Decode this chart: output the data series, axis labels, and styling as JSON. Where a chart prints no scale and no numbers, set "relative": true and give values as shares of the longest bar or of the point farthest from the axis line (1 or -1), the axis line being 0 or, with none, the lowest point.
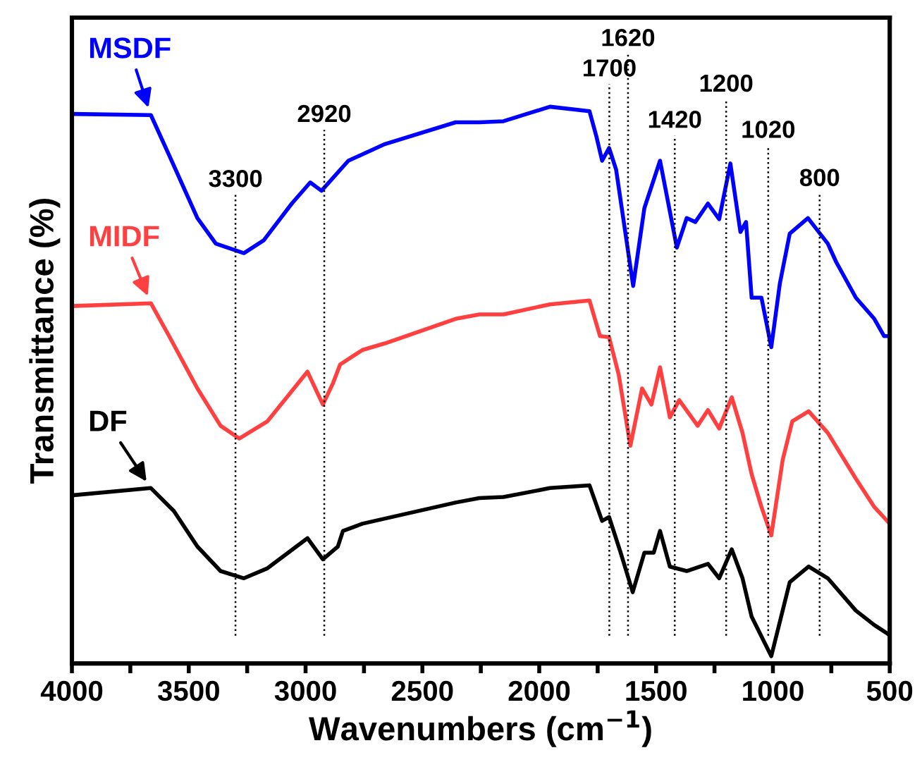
{
  "chart_data": {
    "type": "line",
    "xlabel": "Wavenumbers (cm$^{−1}$)",
    "ylabel": "Transmittance (%)",
    "relative": true,
    "xlim": [
      4000,
      500
    ],
    "xticks": [
      4000,
      {
        "value": 3750,
        "label": null
      },
      3500,
      {
        "value": 3250,
        "label": null
      },
      3000,
      {
        "value": 2750,
        "label": null
      },
      2500,
      {
        "value": 2250,
        "label": null
      },
      2000,
      {
        "value": 1750,
        "label": null
      },
      1500,
      {
        "value": 1250,
        "label": null
      },
      1000,
      {
        "value": 750,
        "label": null
      },
      500
    ],
    "tick_labels": "x",
    "grid": false,
    "marker": "none",
    "line_style": "solid",
    "series": [
      {
        "name": "MSDF",
        "color": "#0000ff",
        "x": [
          4000,
          3662,
          3584,
          3463,
          3384,
          3264,
          3179,
          3059,
          2980,
          2932,
          2817,
          2660,
          2358,
          2256,
          2153,
          1954,
          1785,
          1755,
          1731,
          1701,
          1671,
          1598,
          1550,
          1483,
          1411,
          1369,
          1332,
          1278,
          1230,
          1182,
          1139,
          1115,
          1091,
          1049,
          1007,
          970,
          928,
          850,
          765,
          729,
          645,
          566,
          524,
          500
        ],
        "values": [
          0.987,
          0.985,
          0.913,
          0.8,
          0.754,
          0.737,
          0.76,
          0.826,
          0.864,
          0.849,
          0.903,
          0.933,
          0.972,
          0.972,
          0.974,
          1,
          0.992,
          0.946,
          0.903,
          0.926,
          0.887,
          0.678,
          0.818,
          0.903,
          0.747,
          0.8,
          0.793,
          0.826,
          0.798,
          0.898,
          0.775,
          0.793,
          0.657,
          0.657,
          0.568,
          0.683,
          0.772,
          0.8,
          0.754,
          0.721,
          0.657,
          0.619,
          0.588,
          0.588
        ]
      },
      {
        "name": "MIDF",
        "color": "#ff4040",
        "x": [
          4000,
          3662,
          3584,
          3463,
          3364,
          3284,
          3163,
          2992,
          2926,
          2882,
          2852,
          2757,
          2660,
          2358,
          2256,
          2153,
          1954,
          1785,
          1740,
          1701,
          1660,
          1610,
          1560,
          1520,
          1483,
          1441,
          1401,
          1322,
          1278,
          1230,
          1176,
          1130,
          1091,
          1049,
          1007,
          958,
          917,
          847,
          765,
          645,
          566,
          500
        ],
        "values": [
          0.642,
          0.647,
          0.588,
          0.494,
          0.427,
          0.404,
          0.435,
          0.524,
          0.465,
          0.504,
          0.537,
          0.563,
          0.575,
          0.619,
          0.627,
          0.627,
          0.645,
          0.652,
          0.588,
          0.586,
          0.519,
          0.391,
          0.494,
          0.465,
          0.532,
          0.442,
          0.473,
          0.427,
          0.455,
          0.422,
          0.478,
          0.414,
          0.34,
          0.281,
          0.23,
          0.366,
          0.435,
          0.453,
          0.414,
          0.332,
          0.281,
          0.251
        ]
      },
      {
        "name": "DF",
        "color": "#000000",
        "x": [
          4000,
          3662,
          3564,
          3463,
          3364,
          3264,
          3163,
          2992,
          2926,
          2862,
          2840,
          2757,
          2358,
          2256,
          2153,
          1954,
          1785,
          1731,
          1701,
          1650,
          1600,
          1550,
          1510,
          1483,
          1441,
          1369,
          1278,
          1230,
          1176,
          1130,
          1091,
          1007,
          928,
          847,
          765,
          645,
          566,
          500
        ],
        "values": [
          0.302,
          0.315,
          0.274,
          0.21,
          0.166,
          0.153,
          0.171,
          0.225,
          0.187,
          0.21,
          0.238,
          0.251,
          0.289,
          0.297,
          0.299,
          0.315,
          0.32,
          0.256,
          0.263,
          0.197,
          0.128,
          0.199,
          0.199,
          0.238,
          0.174,
          0.166,
          0.179,
          0.153,
          0.205,
          0.153,
          0.084,
          0.013,
          0.146,
          0.174,
          0.153,
          0.095,
          0.069,
          0.051
        ]
      }
    ],
    "ref_lines": [
      {
        "axis": "x",
        "value": 3300,
        "label": "3300",
        "color": "#000000",
        "line_style": "dotted"
      },
      {
        "axis": "x",
        "value": 2920,
        "label": "2920",
        "color": "#000000",
        "line_style": "dotted"
      },
      {
        "axis": "x",
        "value": 1700,
        "label": "1700",
        "color": "#000000",
        "line_style": "dotted"
      },
      {
        "axis": "x",
        "value": 1620,
        "label": "1620",
        "color": "#000000",
        "line_style": "dotted"
      },
      {
        "axis": "x",
        "value": 1420,
        "label": "1420",
        "color": "#000000",
        "line_style": "dotted"
      },
      {
        "axis": "x",
        "value": 1200,
        "label": "1200",
        "color": "#000000",
        "line_style": "dotted"
      },
      {
        "axis": "x",
        "value": 1020,
        "label": "1020",
        "color": "#000000",
        "line_style": "dotted"
      },
      {
        "axis": "x",
        "value": 800,
        "label": "800",
        "color": "#000000",
        "line_style": "dotted"
      }
    ]
  }
}
